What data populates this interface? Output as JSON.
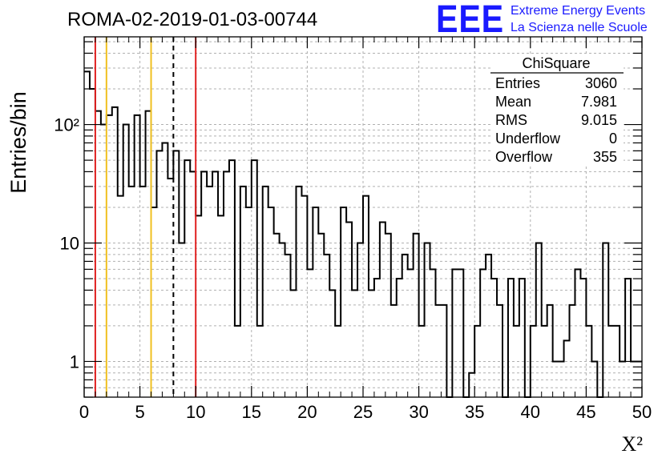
{
  "chart_data": {
    "type": "histogram",
    "title": "ROMA-02-2019-01-03-00744",
    "xlabel": "X²",
    "ylabel": "Entries/bin",
    "xlim": [
      0,
      50
    ],
    "ylim": [
      0.5,
      550
    ],
    "y_scale": "log",
    "grid": true,
    "bin_width": 0.5,
    "x_ticks": [
      "0",
      "5",
      "10",
      "15",
      "20",
      "25",
      "30",
      "35",
      "40",
      "45",
      "50"
    ],
    "y_ticks": [
      {
        "value": 1,
        "label": "1"
      },
      {
        "value": 10,
        "label": "10"
      },
      {
        "value": 100,
        "label": "10²"
      }
    ],
    "counts": [
      280,
      200,
      130,
      100,
      120,
      140,
      25,
      100,
      30,
      120,
      30,
      130,
      20,
      60,
      70,
      35,
      60,
      10,
      50,
      40,
      17,
      40,
      30,
      40,
      17,
      40,
      50,
      2,
      30,
      20,
      50,
      2,
      30,
      20,
      12,
      10,
      8,
      4,
      30,
      25,
      6,
      20,
      12,
      8,
      4,
      2,
      20,
      15,
      4,
      10,
      25,
      4,
      5,
      15,
      12,
      3,
      5,
      8,
      6,
      12,
      2,
      10,
      6,
      3,
      3,
      0,
      6,
      6,
      0,
      0.8,
      2,
      6,
      8,
      5,
      3,
      0.5,
      5,
      2,
      5,
      0.5,
      2,
      10,
      2,
      3,
      1,
      1,
      1.5,
      3,
      6,
      5,
      2,
      1,
      0.5,
      10,
      2,
      2,
      1,
      5,
      1,
      1
    ],
    "vertical_lines": [
      {
        "x": 1,
        "color": "#e02020",
        "style": "solid"
      },
      {
        "x": 2,
        "color": "#f0c020",
        "style": "solid"
      },
      {
        "x": 6,
        "color": "#f0c020",
        "style": "solid"
      },
      {
        "x": 8,
        "color": "#000000",
        "style": "dashed"
      },
      {
        "x": 10,
        "color": "#e02020",
        "style": "solid"
      }
    ],
    "stats_box": {
      "name": "ChiSquare",
      "rows": [
        {
          "label": "Entries",
          "value": "3060"
        },
        {
          "label": "Mean",
          "value": "7.981"
        },
        {
          "label": "RMS",
          "value": "9.015"
        },
        {
          "label": "Underflow",
          "value": "0"
        },
        {
          "label": "Overflow",
          "value": "355"
        }
      ]
    },
    "logo": {
      "big": "EEE",
      "line1": "Extreme Energy Events",
      "line2": "La Scienza nelle Scuole"
    }
  }
}
